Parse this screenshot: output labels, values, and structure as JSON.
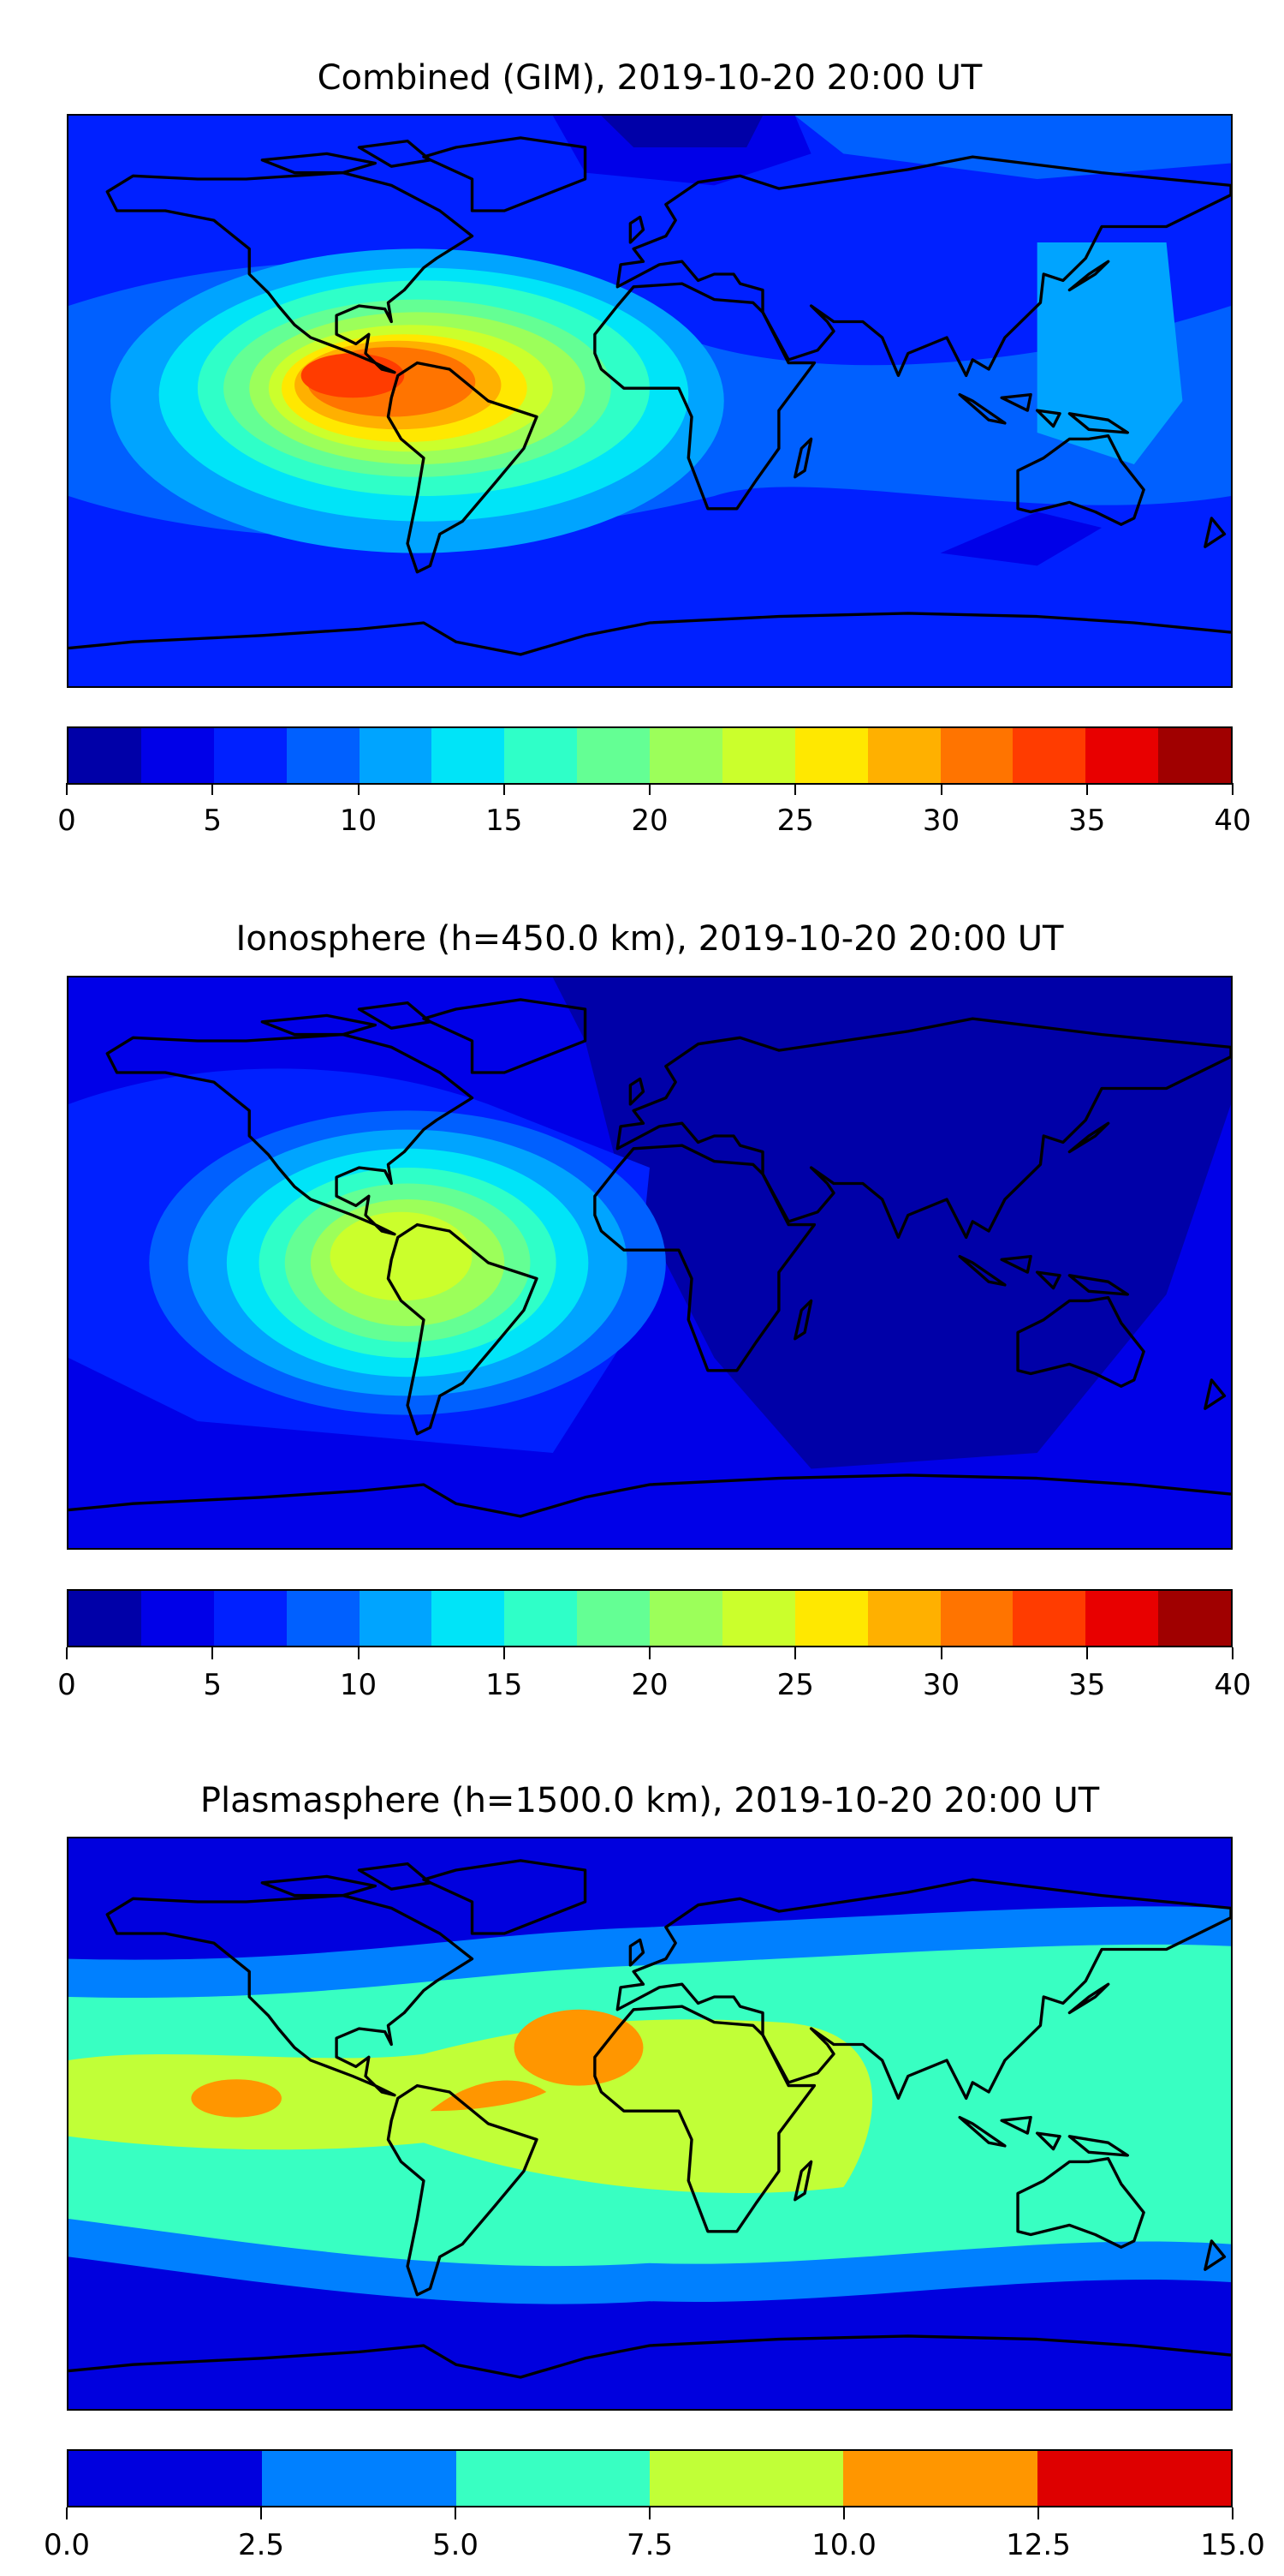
{
  "panels": [
    {
      "title": "Combined (GIM), 2019-10-20 20:00 UT",
      "colorbar": {
        "range": [
          0,
          40
        ],
        "ticks": [
          "0",
          "5",
          "10",
          "15",
          "20",
          "25",
          "30",
          "35",
          "40"
        ],
        "colors": [
          "#0000a8",
          "#0000e8",
          "#0020ff",
          "#0060ff",
          "#00a4ff",
          "#00e4f8",
          "#2fffc8",
          "#64ff94",
          "#9cff5a",
          "#cbff2c",
          "#ffe800",
          "#ffb000",
          "#ff7400",
          "#ff3c00",
          "#e80000",
          "#a00000"
        ]
      }
    },
    {
      "title": "Ionosphere  (h=450.0 km), 2019-10-20 20:00 UT",
      "colorbar": {
        "range": [
          0,
          40
        ],
        "ticks": [
          "0",
          "5",
          "10",
          "15",
          "20",
          "25",
          "30",
          "35",
          "40"
        ],
        "colors": [
          "#0000a8",
          "#0000e8",
          "#0020ff",
          "#0060ff",
          "#00a4ff",
          "#00e4f8",
          "#2fffc8",
          "#64ff94",
          "#9cff5a",
          "#cbff2c",
          "#ffe800",
          "#ffb000",
          "#ff7400",
          "#ff3c00",
          "#e80000",
          "#a00000"
        ]
      }
    },
    {
      "title": "Plasmasphere (h=1500.0 km), 2019-10-20 20:00 UT",
      "colorbar": {
        "range": [
          0,
          15
        ],
        "ticks": [
          "0.0",
          "2.5",
          "5.0",
          "7.5",
          "10.0",
          "12.5",
          "15.0"
        ],
        "colors": [
          "#0000de",
          "#0080ff",
          "#38ffc2",
          "#c1ff37",
          "#ff9600",
          "#de0000"
        ]
      }
    }
  ],
  "chart_data": [
    {
      "type": "heatmap",
      "title": "Combined (GIM), 2019-10-20 20:00 UT",
      "levels": [
        0,
        2.5,
        5,
        7.5,
        10,
        12.5,
        15,
        17.5,
        20,
        22.5,
        25,
        27.5,
        30,
        32.5,
        35,
        37.5,
        40
      ],
      "max_region": "South America / eastern Pacific",
      "approx_max": 35
    },
    {
      "type": "heatmap",
      "title": "Ionosphere  (h=450.0 km), 2019-10-20 20:00 UT",
      "levels": [
        0,
        2.5,
        5,
        7.5,
        10,
        12.5,
        15,
        17.5,
        20,
        22.5,
        25,
        27.5,
        30,
        32.5,
        35,
        37.5,
        40
      ],
      "max_region": "South America",
      "approx_max": 27.5
    },
    {
      "type": "heatmap",
      "title": "Plasmasphere (h=1500.0 km), 2019-10-20 20:00 UT",
      "levels": [
        0,
        2.5,
        5,
        7.5,
        10,
        12.5,
        15
      ],
      "max_region": "Atlantic / West Africa",
      "approx_max": 12.5
    }
  ]
}
